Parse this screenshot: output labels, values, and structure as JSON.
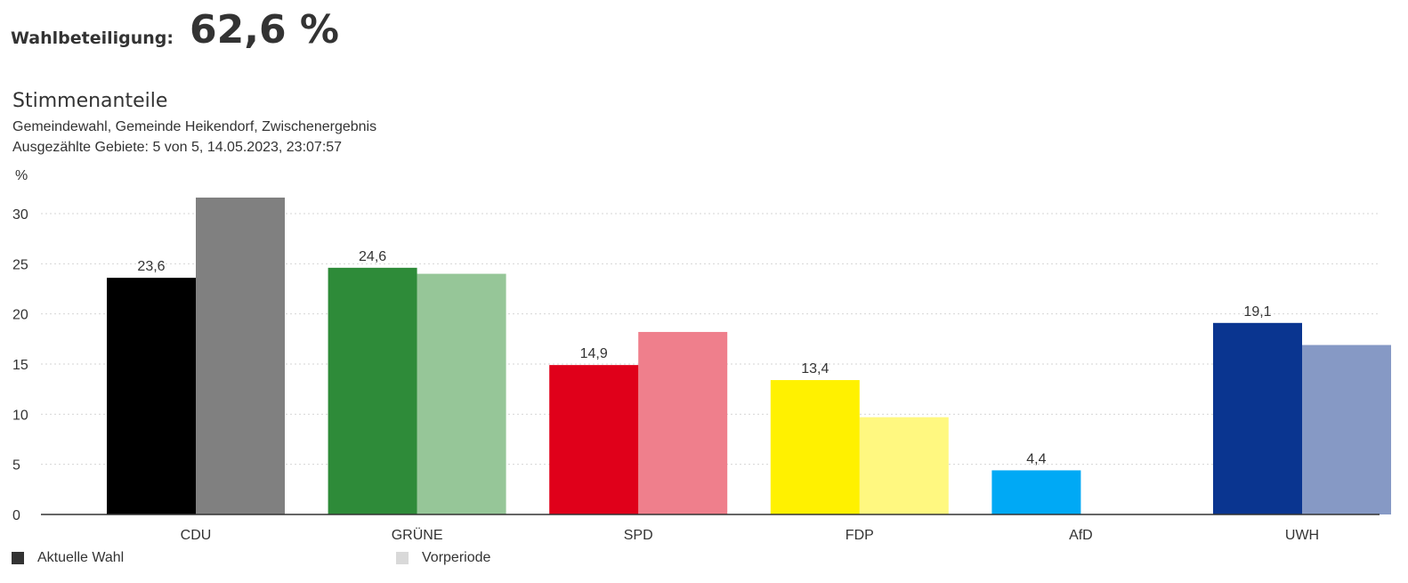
{
  "turnout": {
    "label": "Wahlbeteiligung:",
    "value": "62,6 %"
  },
  "chart_data": {
    "type": "bar",
    "title": "Stimmenanteile",
    "subtitle_lines": [
      "Gemeindewahl, Gemeinde Heikendorf, Zwischenergebnis",
      "Ausgezählte Gebiete: 5 von 5, 14.05.2023, 23:07:57"
    ],
    "ylabel": "%",
    "ylim": [
      0,
      30
    ],
    "yticks": [
      "0",
      "5",
      "10",
      "15",
      "20",
      "25",
      "30"
    ],
    "grid": true,
    "categories": [
      "CDU",
      "GRÜNE",
      "SPD",
      "FDP",
      "AfD",
      "UWH"
    ],
    "series": [
      {
        "name": "Aktuelle Wahl",
        "values": [
          23.6,
          24.6,
          14.9,
          13.4,
          4.4,
          19.1
        ],
        "value_labels": [
          "23,6",
          "24,6",
          "14,9",
          "13,4",
          "4,4",
          "19,1"
        ],
        "colors": [
          "#000000",
          "#2e8b39",
          "#e0001a",
          "#fff100",
          "#00a9f5",
          "#0a3590"
        ]
      },
      {
        "name": "Vorperiode",
        "values": [
          31.6,
          24.0,
          18.2,
          9.7,
          null,
          16.9
        ],
        "colors": [
          "#808080",
          "#96c698",
          "#ef7f8c",
          "#fff880",
          null,
          "#8699c5"
        ]
      }
    ],
    "legend": {
      "placement": "bottom-left",
      "items": [
        {
          "label": "Aktuelle Wahl",
          "color": "#333333"
        },
        {
          "label": "Vorperiode",
          "color": "#d9d9d9"
        }
      ]
    }
  }
}
